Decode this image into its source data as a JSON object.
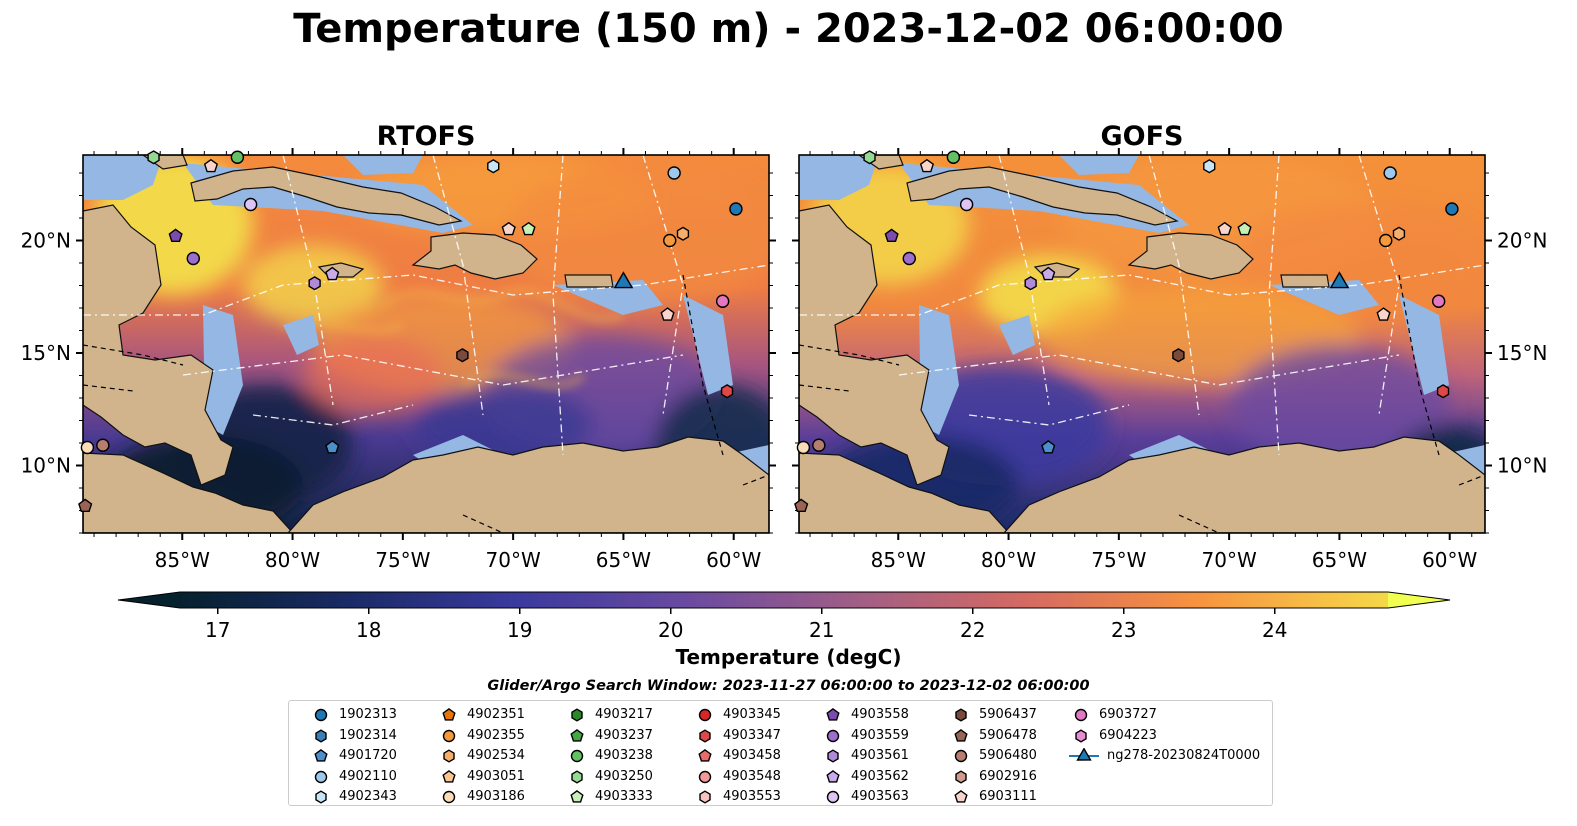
{
  "title": "Temperature (150 m) - 2023-12-02 06:00:00",
  "chart_data": {
    "type": "heatmap",
    "panels": [
      {
        "name": "RTOFS"
      },
      {
        "name": "GOFS"
      }
    ],
    "x_ticks": [
      -85,
      -80,
      -75,
      -70,
      -65,
      -60
    ],
    "x_tick_labels": [
      "85°W",
      "80°W",
      "75°W",
      "70°W",
      "65°W",
      "60°W"
    ],
    "y_ticks": [
      10,
      15,
      20
    ],
    "y_tick_labels": [
      "10°N",
      "15°N",
      "20°N"
    ],
    "xlim": [
      -89.5,
      -58.4
    ],
    "ylim": [
      7.0,
      23.8
    ],
    "colorbar": {
      "label": "Temperature (degC)",
      "min": 16.75,
      "max": 24.75,
      "ticks": [
        17,
        18,
        19,
        20,
        21,
        22,
        23,
        24
      ],
      "extend": "both"
    },
    "legend_title": "Glider/Argo Search Window: 2023-11-27 06:00:00 to 2023-12-02 06:00:00",
    "legend": [
      {
        "label": "1902313",
        "marker": "circle",
        "color": "#1f77b4"
      },
      {
        "label": "1902314",
        "marker": "hexagon",
        "color": "#3a7fb8"
      },
      {
        "label": "4901720",
        "marker": "pentagon",
        "color": "#4c8fcd"
      },
      {
        "label": "4902110",
        "marker": "circle",
        "color": "#9ec9ea"
      },
      {
        "label": "4902343",
        "marker": "hexagon",
        "color": "#c6e6f7"
      },
      {
        "label": "4902351",
        "marker": "pentagon",
        "color": "#e8740c"
      },
      {
        "label": "4902355",
        "marker": "circle",
        "color": "#f59a3c"
      },
      {
        "label": "4902534",
        "marker": "hexagon",
        "color": "#f7ae6b"
      },
      {
        "label": "4903051",
        "marker": "pentagon",
        "color": "#f9c690"
      },
      {
        "label": "4903186",
        "marker": "circle",
        "color": "#fcdcb8"
      },
      {
        "label": "4903217",
        "marker": "hexagon",
        "color": "#2a8a2a"
      },
      {
        "label": "4903237",
        "marker": "pentagon",
        "color": "#45a845"
      },
      {
        "label": "4903238",
        "marker": "circle",
        "color": "#63c063"
      },
      {
        "label": "4903250",
        "marker": "hexagon",
        "color": "#95d995"
      },
      {
        "label": "4903333",
        "marker": "pentagon",
        "color": "#c6f0b8"
      },
      {
        "label": "4903345",
        "marker": "circle",
        "color": "#d62728"
      },
      {
        "label": "4903347",
        "marker": "hexagon",
        "color": "#e04848"
      },
      {
        "label": "4903458",
        "marker": "pentagon",
        "color": "#ea6b6b"
      },
      {
        "label": "4903548",
        "marker": "circle",
        "color": "#f39a98"
      },
      {
        "label": "4903553",
        "marker": "hexagon",
        "color": "#f9c4c0"
      },
      {
        "label": "4903558",
        "marker": "pentagon",
        "color": "#7b4bb0"
      },
      {
        "label": "4903559",
        "marker": "circle",
        "color": "#9b6fcb"
      },
      {
        "label": "4903561",
        "marker": "hexagon",
        "color": "#b08ad8"
      },
      {
        "label": "4903562",
        "marker": "pentagon",
        "color": "#c9aaea"
      },
      {
        "label": "4903563",
        "marker": "circle",
        "color": "#dcc4f4"
      },
      {
        "label": "5906437",
        "marker": "hexagon",
        "color": "#7a4a3c"
      },
      {
        "label": "5906478",
        "marker": "pentagon",
        "color": "#9a6455"
      },
      {
        "label": "5906480",
        "marker": "circle",
        "color": "#b57e70"
      },
      {
        "label": "6902916",
        "marker": "hexagon",
        "color": "#cf9b8c"
      },
      {
        "label": "6903111",
        "marker": "pentagon",
        "color": "#f8d4cc"
      },
      {
        "label": "6903727",
        "marker": "circle",
        "color": "#e377c2"
      },
      {
        "label": "6904223",
        "marker": "hexagon",
        "color": "#e98bd0"
      },
      {
        "label": "ng278-20230824T0000",
        "marker": "triangle",
        "color": "#1f77b4"
      }
    ],
    "glider_position": {
      "lon": -65.0,
      "lat": 18.2
    },
    "argo_positions": [
      {
        "id": "4903559",
        "lon": -84.5,
        "lat": 19.2
      },
      {
        "id": "4903558",
        "lon": -85.3,
        "lat": 20.2
      },
      {
        "id": "4903563",
        "lon": -81.9,
        "lat": 21.6
      },
      {
        "id": "4903561",
        "lon": -79.0,
        "lat": 18.1
      },
      {
        "id": "4903562",
        "lon": -78.2,
        "lat": 18.5
      },
      {
        "id": "5906437",
        "lon": -72.3,
        "lat": 14.9
      },
      {
        "id": "4901720",
        "lon": -78.2,
        "lat": 10.8
      },
      {
        "id": "4902343",
        "lon": -70.9,
        "lat": 23.3
      },
      {
        "id": "4902110",
        "lon": -62.7,
        "lat": 23.0
      },
      {
        "id": "1902313",
        "lon": -59.9,
        "lat": 21.4
      },
      {
        "id": "4902355",
        "lon": -62.9,
        "lat": 20.0
      },
      {
        "id": "4902534",
        "lon": -62.3,
        "lat": 20.3
      },
      {
        "id": "4903333",
        "lon": -69.3,
        "lat": 20.5
      },
      {
        "id": "6903111",
        "lon": -70.2,
        "lat": 20.5
      },
      {
        "id": "6903727",
        "lon": -60.5,
        "lat": 17.3
      },
      {
        "id": "6903111",
        "lon": -63.0,
        "lat": 16.7
      },
      {
        "id": "4903347",
        "lon": -60.3,
        "lat": 13.3
      },
      {
        "id": "6903111",
        "lon": -83.7,
        "lat": 23.3
      },
      {
        "id": "4903238",
        "lon": -82.5,
        "lat": 23.7
      },
      {
        "id": "4903250",
        "lon": -86.3,
        "lat": 23.7
      },
      {
        "id": "4903186",
        "lon": -89.3,
        "lat": 10.8
      },
      {
        "id": "5906480",
        "lon": -88.6,
        "lat": 10.9
      },
      {
        "id": "5906478",
        "lon": -89.4,
        "lat": 8.2
      }
    ]
  }
}
